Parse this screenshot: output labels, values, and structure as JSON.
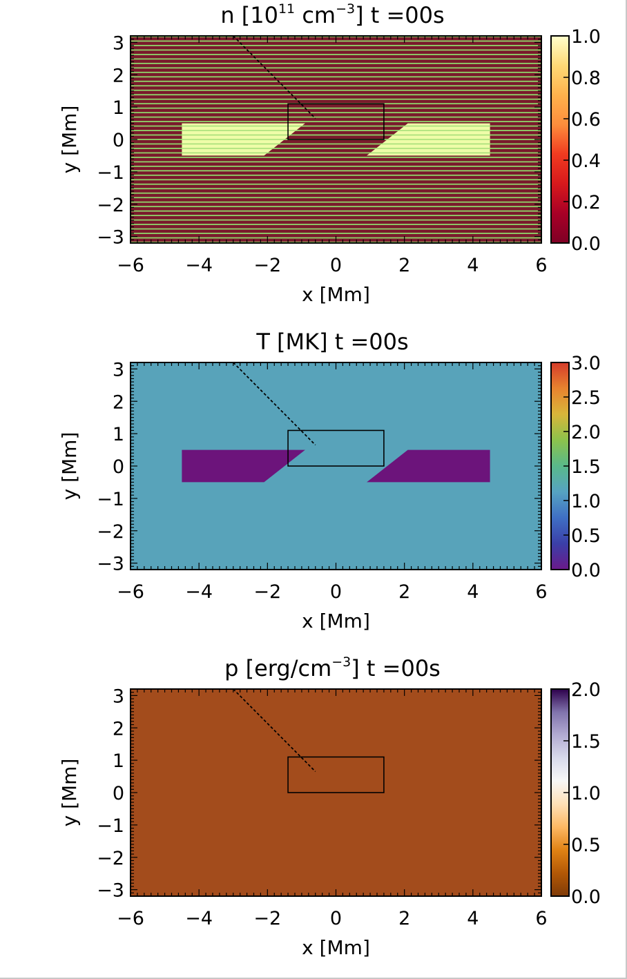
{
  "chart_data": [
    {
      "type": "heatmap",
      "id": "n",
      "title": {
        "parts": [
          "n  [10",
          "11",
          "  cm",
          "−3",
          "]  t  =00s"
        ]
      },
      "xlabel": "x [Mm]",
      "ylabel": "y [Mm]",
      "xlim": [
        -6,
        6
      ],
      "ylim": [
        -3.2,
        3.2
      ],
      "xticks": [
        "−6",
        "−4",
        "−2",
        "0",
        "2",
        "4",
        "6"
      ],
      "xtick_values": [
        -6,
        -4,
        -2,
        0,
        2,
        4,
        6
      ],
      "yticks": [
        "−3",
        "−2",
        "−1",
        "0",
        "1",
        "2",
        "3"
      ],
      "ytick_values": [
        -3,
        -2,
        -1,
        0,
        1,
        2,
        3
      ],
      "colorbar": {
        "range": [
          0,
          1
        ],
        "ticks": [
          "0.0",
          "0.2",
          "0.4",
          "0.6",
          "0.8",
          "1.0"
        ],
        "tick_values": [
          0,
          0.2,
          0.4,
          0.6,
          0.8,
          1.0
        ],
        "colors": [
          "#7f0025",
          "#a80026",
          "#d7191c",
          "#f03b20",
          "#fd8d3c",
          "#feb24c",
          "#fed976",
          "#ffffcc"
        ]
      },
      "background_color": "#7a1a2c",
      "stripes": {
        "color": "#8fd66a",
        "count": 46
      },
      "patch_color": "#eefca8",
      "patches": [
        {
          "name": "left-slab",
          "vertices": [
            [
              -4.5,
              0.5
            ],
            [
              -0.9,
              0.5
            ],
            [
              -2.1,
              -0.5
            ],
            [
              -4.5,
              -0.5
            ]
          ]
        },
        {
          "name": "right-slab",
          "vertices": [
            [
              2.1,
              0.5
            ],
            [
              4.5,
              0.5
            ],
            [
              4.5,
              -0.5
            ],
            [
              0.9,
              -0.5
            ]
          ]
        }
      ],
      "box": {
        "x0": -1.4,
        "x1": 1.4,
        "y0": 0.0,
        "y1": 1.1
      },
      "dashed_line": {
        "from": [
          -3.0,
          3.2
        ],
        "to": [
          -0.6,
          0.65
        ]
      }
    },
    {
      "type": "heatmap",
      "id": "T",
      "title": {
        "parts": [
          "T  [MK]  t  =00s"
        ]
      },
      "xlabel": "x [Mm]",
      "ylabel": "y [Mm]",
      "xlim": [
        -6,
        6
      ],
      "ylim": [
        -3.2,
        3.2
      ],
      "xticks": [
        "−6",
        "−4",
        "−2",
        "0",
        "2",
        "4",
        "6"
      ],
      "xtick_values": [
        -6,
        -4,
        -2,
        0,
        2,
        4,
        6
      ],
      "yticks": [
        "−3",
        "−2",
        "−1",
        "0",
        "1",
        "2",
        "3"
      ],
      "ytick_values": [
        -3,
        -2,
        -1,
        0,
        1,
        2,
        3
      ],
      "colorbar": {
        "range": [
          0,
          3
        ],
        "ticks": [
          "0.0",
          "0.5",
          "1.0",
          "1.5",
          "2.0",
          "2.5",
          "3.0"
        ],
        "tick_values": [
          0,
          0.5,
          1.0,
          1.5,
          2.0,
          2.5,
          3.0
        ],
        "colors": [
          "#6a1a8a",
          "#3b3fa8",
          "#3f6fc4",
          "#56a3c2",
          "#59b98a",
          "#8cc24c",
          "#d8b63a",
          "#e8832f",
          "#d43b2a"
        ]
      },
      "background_color": "#58a3ba",
      "patch_color": "#6c147b",
      "patches": [
        {
          "name": "left-slab",
          "vertices": [
            [
              -4.5,
              0.5
            ],
            [
              -0.9,
              0.5
            ],
            [
              -2.1,
              -0.5
            ],
            [
              -4.5,
              -0.5
            ]
          ]
        },
        {
          "name": "right-slab",
          "vertices": [
            [
              2.1,
              0.5
            ],
            [
              4.5,
              0.5
            ],
            [
              4.5,
              -0.5
            ],
            [
              0.9,
              -0.5
            ]
          ]
        }
      ],
      "box": {
        "x0": -1.4,
        "x1": 1.4,
        "y0": 0.0,
        "y1": 1.1
      },
      "dashed_line": {
        "from": [
          -3.0,
          3.2
        ],
        "to": [
          -0.6,
          0.65
        ]
      }
    },
    {
      "type": "heatmap",
      "id": "p",
      "title": {
        "parts": [
          "p  [erg/cm",
          "−3",
          "]  t  =00s"
        ]
      },
      "xlabel": "x [Mm]",
      "ylabel": "y [Mm]",
      "xlim": [
        -6,
        6
      ],
      "ylim": [
        -3.2,
        3.2
      ],
      "xticks": [
        "−6",
        "−4",
        "−2",
        "0",
        "2",
        "4",
        "6"
      ],
      "xtick_values": [
        -6,
        -4,
        -2,
        0,
        2,
        4,
        6
      ],
      "yticks": [
        "−3",
        "−2",
        "−1",
        "0",
        "1",
        "2",
        "3"
      ],
      "ytick_values": [
        -3,
        -2,
        -1,
        0,
        1,
        2,
        3
      ],
      "colorbar": {
        "range": [
          0,
          2
        ],
        "ticks": [
          "0.0",
          "0.5",
          "1.0",
          "1.5",
          "2.0"
        ],
        "tick_values": [
          0,
          0.5,
          1.0,
          1.5,
          2.0
        ],
        "colors": [
          "#7f3b08",
          "#b35806",
          "#e08214",
          "#fdb863",
          "#fee0b6",
          "#f7f7f7",
          "#d8daeb",
          "#b2abd2",
          "#8073ac",
          "#2d004b"
        ]
      },
      "background_color": "#a34c1c",
      "patch_color": "#a34c1c",
      "patches": [],
      "box": {
        "x0": -1.4,
        "x1": 1.4,
        "y0": 0.0,
        "y1": 1.1
      },
      "dashed_line": {
        "from": [
          -3.0,
          3.2
        ],
        "to": [
          -0.6,
          0.65
        ]
      }
    }
  ]
}
